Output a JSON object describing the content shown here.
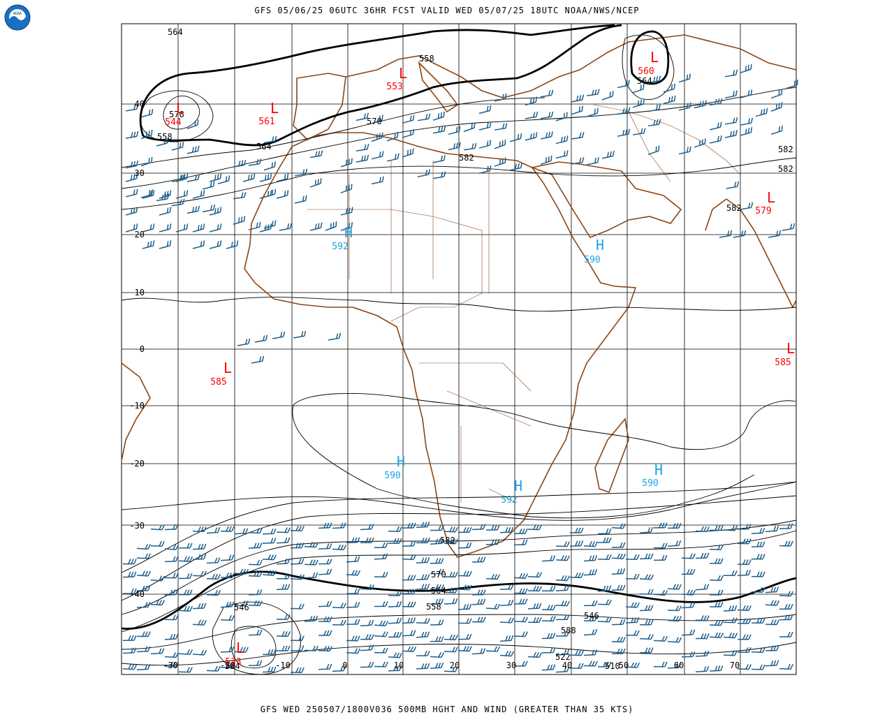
{
  "header": {
    "title": "GFS 05/06/25 06UTC 36HR FCST VALID WED 05/07/25 18UTC NOAA/NWS/NCEP",
    "footer": "GFS WED 250507/1800V036 500MB HGHT AND WIND (GREATER THAN 35 KTS)"
  },
  "logo": {
    "text": "NOAA"
  },
  "colors": {
    "background": "#ffffff",
    "grid": "#000000",
    "coastline": "#8b4513",
    "contour": "#000000",
    "wind_barb": "#1f5f8b",
    "low": "#ff0000",
    "high": "#1aa3e8"
  },
  "axes": {
    "lon_ticks": [
      "-30",
      "-20",
      "-10",
      "0",
      "10",
      "20",
      "30",
      "40",
      "50",
      "60",
      "70"
    ],
    "lat_ticks": [
      "40",
      "30",
      "20",
      "10",
      "0",
      "-10",
      "-20",
      "-30",
      "-40"
    ]
  },
  "lows": [
    {
      "label": "L",
      "value": "544"
    },
    {
      "label": "L",
      "value": "561"
    },
    {
      "label": "L",
      "value": "553"
    },
    {
      "label": "L",
      "value": "560"
    },
    {
      "label": "L",
      "value": "579"
    },
    {
      "label": "L",
      "value": "585"
    },
    {
      "label": "L",
      "value": "585"
    },
    {
      "label": "L",
      "value": "533"
    }
  ],
  "highs": [
    {
      "label": "H",
      "value": "592"
    },
    {
      "label": "H",
      "value": "590"
    },
    {
      "label": "H",
      "value": "590"
    },
    {
      "label": "H",
      "value": "592"
    },
    {
      "label": "H",
      "value": "590"
    }
  ],
  "contour_labels": [
    "564",
    "558",
    "570",
    "552",
    "546",
    "534",
    "582",
    "588",
    "540",
    "592",
    "576",
    "522",
    "510"
  ]
}
